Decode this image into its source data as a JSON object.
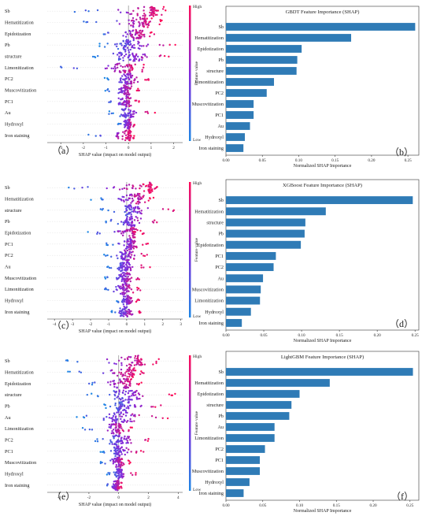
{
  "colors": {
    "low": "#1e88e5",
    "high": "#ff0d57",
    "bar": "#2f7bb6",
    "frame": "#333333"
  },
  "colorbar": {
    "high_label": "High",
    "low_label": "Low",
    "title": "Feature value"
  },
  "chart_data": [
    {
      "type": "scatter",
      "panel_label": "（a）",
      "xlabel": "SHAP value (impact on model output)",
      "xlim": [
        -3.6,
        2.4
      ],
      "xticks": [
        -3,
        -2,
        -1,
        0,
        1,
        2
      ],
      "features": [
        {
          "name": "Sb",
          "min": -2.6,
          "max": 1.7,
          "center": 1.0
        },
        {
          "name": "Hematitization",
          "min": -2.2,
          "max": 1.5,
          "center": 0.6
        },
        {
          "name": "Epidotization",
          "min": -1.5,
          "max": 1.2,
          "center": 0.4
        },
        {
          "name": "Pb",
          "min": -1.3,
          "max": 2.1,
          "center": 0.0
        },
        {
          "name": "structure",
          "min": -1.6,
          "max": 2.0,
          "center": 0.1
        },
        {
          "name": "Limonitization",
          "min": -3.3,
          "max": 0.8,
          "center": 0.0
        },
        {
          "name": "PC2",
          "min": -1.1,
          "max": 0.9,
          "center": 0.0
        },
        {
          "name": "Muscovitization",
          "min": -1.1,
          "max": 0.5,
          "center": -0.1
        },
        {
          "name": "PC1",
          "min": -1.1,
          "max": 0.5,
          "center": -0.1
        },
        {
          "name": "Au",
          "min": -0.9,
          "max": 1.2,
          "center": -0.1
        },
        {
          "name": "Hydroxyl",
          "min": -0.5,
          "max": 0.3,
          "center": 0.0
        },
        {
          "name": "Iron staining",
          "min": -1.8,
          "max": 0.3,
          "center": 0.0
        }
      ]
    },
    {
      "type": "bar",
      "title": "GBDT Feature Importance (SHAP)",
      "panel_label": "（b）",
      "xlabel": "Normalized SHAP Importance",
      "xlim": [
        0,
        0.265
      ],
      "xticks": [
        0.0,
        0.05,
        0.1,
        0.15,
        0.2,
        0.25
      ],
      "xticklabels": [
        "0.00",
        "0.05",
        "0.10",
        "0.15",
        "0.20",
        "0.25"
      ],
      "categories": [
        "Sb",
        "Hematitization",
        "Epidotization",
        "Pb",
        "structure",
        "Limonitization",
        "PC2",
        "Muscovitization",
        "PC1",
        "Au",
        "Hydroxyl",
        "Iron staining"
      ],
      "values": [
        0.26,
        0.172,
        0.104,
        0.098,
        0.097,
        0.066,
        0.056,
        0.038,
        0.038,
        0.033,
        0.026,
        0.024
      ]
    },
    {
      "type": "scatter",
      "panel_label": "（c）",
      "xlabel": "SHAP value (impact on model output)",
      "xlim": [
        -4.4,
        3.1
      ],
      "xticks": [
        -4,
        -3,
        -2,
        -1,
        0,
        1,
        2,
        3
      ],
      "features": [
        {
          "name": "Sb",
          "min": -3.9,
          "max": 1.7,
          "center": 1.2
        },
        {
          "name": "Hematitization",
          "min": -2.0,
          "max": 1.5,
          "center": 0.6
        },
        {
          "name": "structure",
          "min": -1.5,
          "max": 2.8,
          "center": 0.2
        },
        {
          "name": "Pb",
          "min": -1.4,
          "max": 1.9,
          "center": 0.2
        },
        {
          "name": "Epidotization",
          "min": -2.2,
          "max": 1.0,
          "center": 0.3
        },
        {
          "name": "PC1",
          "min": -1.2,
          "max": 1.2,
          "center": 0.2
        },
        {
          "name": "PC2",
          "min": -1.3,
          "max": 1.2,
          "center": 0.0
        },
        {
          "name": "Au",
          "min": -1.2,
          "max": 1.3,
          "center": -0.1
        },
        {
          "name": "Muscovitization",
          "min": -1.3,
          "max": 0.8,
          "center": -0.1
        },
        {
          "name": "Limonitization",
          "min": -1.5,
          "max": 0.8,
          "center": -0.1
        },
        {
          "name": "Hydroxyl",
          "min": -0.7,
          "max": 0.7,
          "center": 0.0
        },
        {
          "name": "Iron staining",
          "min": -0.9,
          "max": 0.8,
          "center": -0.1
        }
      ]
    },
    {
      "type": "bar",
      "title": "XGBoost Feature Importance (SHAP)",
      "panel_label": "（d）",
      "xlabel": "Normalized SHAP Importance",
      "xlim": [
        0,
        0.255
      ],
      "xticks": [
        0.0,
        0.05,
        0.1,
        0.15,
        0.2,
        0.25
      ],
      "xticklabels": [
        "0.00",
        "0.05",
        "0.10",
        "0.15",
        "0.20",
        "0.25"
      ],
      "categories": [
        "Sb",
        "Hematitization",
        "structure",
        "Pb",
        "Epidotization",
        "PC1",
        "PC2",
        "Au",
        "Muscovitization",
        "Limonitization",
        "Hydroxyl",
        "Iron staining"
      ],
      "values": [
        0.247,
        0.132,
        0.105,
        0.104,
        0.099,
        0.066,
        0.063,
        0.049,
        0.046,
        0.045,
        0.033,
        0.021
      ]
    },
    {
      "type": "scatter",
      "panel_label": "（e）",
      "xlabel": "SHAP value (impact on model output)",
      "xlim": [
        -4.8,
        4.3
      ],
      "xticks": [
        -4,
        -2,
        0,
        2,
        4
      ],
      "features": [
        {
          "name": "Sb",
          "min": -4.3,
          "max": 2.8,
          "center": 1.2
        },
        {
          "name": "Hematitization",
          "min": -3.5,
          "max": 1.7,
          "center": 0.7
        },
        {
          "name": "Epidotization",
          "min": -2.5,
          "max": 1.6,
          "center": 0.4
        },
        {
          "name": "structure",
          "min": -2.2,
          "max": 3.8,
          "center": 0.5
        },
        {
          "name": "Pb",
          "min": -1.0,
          "max": 3.0,
          "center": 0.3
        },
        {
          "name": "Au",
          "min": -2.9,
          "max": 3.3,
          "center": 0.0
        },
        {
          "name": "Limonitization",
          "min": -2.6,
          "max": 1.0,
          "center": -0.1
        },
        {
          "name": "PC2",
          "min": -1.6,
          "max": 2.3,
          "center": 0.0
        },
        {
          "name": "PC1",
          "min": -1.3,
          "max": 1.8,
          "center": 0.0
        },
        {
          "name": "Muscovitization",
          "min": -1.4,
          "max": 0.8,
          "center": 0.0
        },
        {
          "name": "Hydroxyl",
          "min": -0.8,
          "max": 1.2,
          "center": 0.0
        },
        {
          "name": "Iron staining",
          "min": -1.0,
          "max": 0.3,
          "center": -0.1
        }
      ]
    },
    {
      "type": "bar",
      "title": "LightGBM Feature Importance (SHAP)",
      "panel_label": "（f）",
      "xlabel": "Normalized SHAP Importance",
      "xlim": [
        0,
        0.262
      ],
      "xticks": [
        0.0,
        0.05,
        0.1,
        0.15,
        0.2,
        0.25
      ],
      "xticklabels": [
        "0.00",
        "0.05",
        "0.10",
        "0.15",
        "0.20",
        "0.25"
      ],
      "categories": [
        "Sb",
        "Hematitization",
        "Epidotization",
        "structure",
        "Pb",
        "Au",
        "Limonitization",
        "PC2",
        "PC1",
        "Muscovitization",
        "Hydroxyl",
        "Iron staining"
      ],
      "values": [
        0.254,
        0.141,
        0.1,
        0.089,
        0.086,
        0.066,
        0.066,
        0.053,
        0.046,
        0.046,
        0.032,
        0.024
      ]
    }
  ]
}
